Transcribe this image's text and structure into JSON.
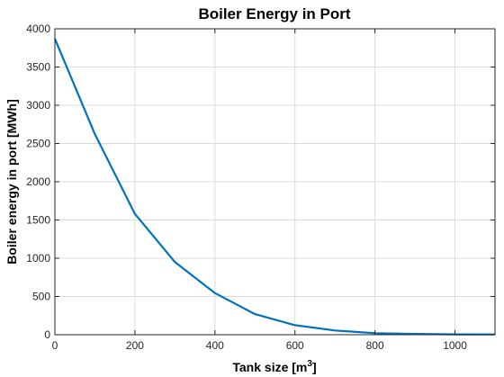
{
  "chart_data": {
    "type": "line",
    "title": "Boiler Energy in Port",
    "xlabel": "Tank size [m",
    "xlabel_sup": "3",
    "xlabel_end": "]",
    "ylabel": "Boiler energy in port [MWh]",
    "xlim": [
      0,
      1100
    ],
    "ylim": [
      0,
      4000
    ],
    "xticks": [
      0,
      200,
      400,
      600,
      800,
      1000
    ],
    "yticks": [
      0,
      500,
      1000,
      1500,
      2000,
      2500,
      3000,
      3500,
      4000
    ],
    "grid": true,
    "series": [
      {
        "color": "#0072BD",
        "x": [
          0,
          100,
          200,
          300,
          400,
          500,
          600,
          700,
          800,
          900,
          1000,
          1100
        ],
        "y": [
          3870,
          2620,
          1580,
          950,
          545,
          270,
          125,
          55,
          20,
          10,
          5,
          3
        ]
      }
    ]
  }
}
